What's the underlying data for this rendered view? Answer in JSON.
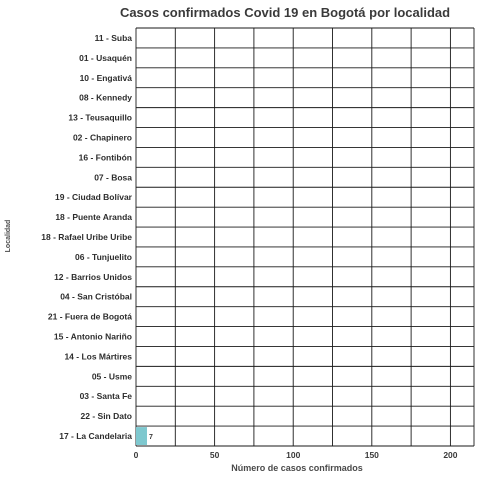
{
  "chart_data": {
    "type": "bar",
    "orientation": "horizontal",
    "title": "Casos confirmados Covid 19 en Bogotá por localidad",
    "xlabel": "Número de casos confirmados",
    "ylabel": "Localidad",
    "categories": [
      "11 - Suba",
      "01 - Usaquén",
      "10 - Engativá",
      "08 - Kennedy",
      "13 - Teusaquillo",
      "02 - Chapinero",
      "16 - Fontibón",
      "07 - Bosa",
      "19 - Ciudad Bolívar",
      "18 - Puente Aranda",
      "18 - Rafael Uribe Uribe",
      "06 - Tunjuelito",
      "12 - Barrios Unidos",
      "04 - San Cristóbal",
      "21 - Fuera de Bogotá",
      "15 - Antonio Nariño",
      "14 - Los Mártires",
      "05 - Usme",
      "03 - Santa Fe",
      "22 - Sin Dato",
      "17 - La Candelaria"
    ],
    "values": [
      0,
      0,
      0,
      0,
      0,
      0,
      0,
      0,
      0,
      0,
      0,
      0,
      0,
      0,
      0,
      0,
      0,
      0,
      0,
      0,
      7
    ],
    "data_labels": [
      "",
      "",
      "",
      "",
      "",
      "",
      "",
      "",
      "",
      "",
      "",
      "",
      "",
      "",
      "",
      "",
      "",
      "",
      "",
      "",
      "7"
    ],
    "xlim": [
      0,
      215
    ],
    "xticks": [
      0,
      50,
      100,
      150,
      200
    ],
    "grid": true,
    "bar_color": "#7ec8cf"
  }
}
